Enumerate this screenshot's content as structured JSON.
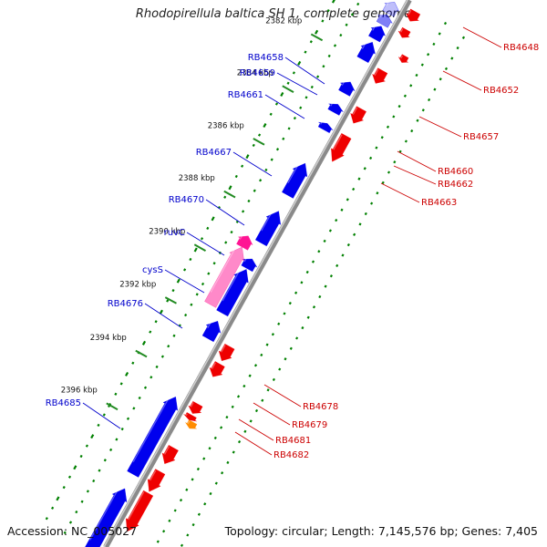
{
  "header": {
    "title": "Rhodopirellula baltica SH 1, complete genome"
  },
  "footer": {
    "accession": "Accession: NC_005027",
    "summary": "Topology: circular; Length: 7,145,576 bp; Genes: 7,405"
  },
  "colors": {
    "forward_gene": "#0000ee",
    "reverse_gene": "#ee0000",
    "rna_gene": "#ff1493",
    "other_feature": "#ff8c00",
    "backbone": "#8a8a8a",
    "gc_marks": "#008000",
    "ruler_ticks": "#228b22",
    "forward_label": "#0000cc",
    "reverse_label": "#cc0000"
  },
  "ruler": {
    "ticks": [
      "2382 kbp",
      "2384 kbp",
      "2386 kbp",
      "2388 kbp",
      "2390 kbp",
      "2392 kbp",
      "2394 kbp",
      "2396 kbp"
    ]
  },
  "genes": {
    "forward": [
      "RB4658",
      "RB4659",
      "RB4661",
      "RB4667",
      "RB4670",
      "ruvC",
      "cysS",
      "RB4676",
      "RB4685"
    ],
    "reverse": [
      "RB4648",
      "RB4652",
      "RB4657",
      "RB4660",
      "RB4662",
      "RB4663",
      "RB4678",
      "RB4679",
      "RB4681",
      "RB4682"
    ]
  }
}
